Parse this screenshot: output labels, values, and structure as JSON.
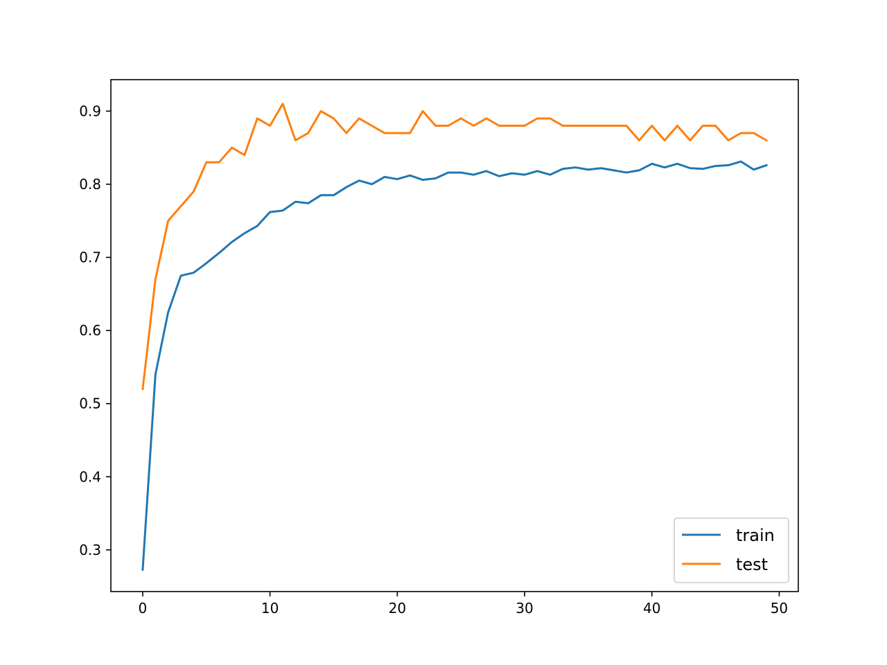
{
  "chart_data": {
    "type": "line",
    "title": "",
    "xlabel": "",
    "ylabel": "",
    "xlim": [
      -2.5,
      51.5
    ],
    "ylim": [
      0.243,
      0.943
    ],
    "x_ticks": [
      0,
      10,
      20,
      30,
      40,
      50
    ],
    "y_ticks": [
      0.3,
      0.4,
      0.5,
      0.6,
      0.7,
      0.8,
      0.9
    ],
    "grid": false,
    "legend_position": "lower-right",
    "series": [
      {
        "name": "train",
        "color": "#1f77b4",
        "x": [
          0,
          1,
          2,
          3,
          4,
          5,
          6,
          7,
          8,
          9,
          10,
          11,
          12,
          13,
          14,
          15,
          16,
          17,
          18,
          19,
          20,
          21,
          22,
          23,
          24,
          25,
          26,
          27,
          28,
          29,
          30,
          31,
          32,
          33,
          34,
          35,
          36,
          37,
          38,
          39,
          40,
          41,
          42,
          43,
          44,
          45,
          46,
          47,
          48,
          49
        ],
        "values": [
          0.273,
          0.54,
          0.625,
          0.675,
          0.679,
          0.692,
          0.706,
          0.721,
          0.733,
          0.743,
          0.762,
          0.764,
          0.776,
          0.774,
          0.785,
          0.785,
          0.796,
          0.805,
          0.8,
          0.81,
          0.807,
          0.812,
          0.806,
          0.808,
          0.816,
          0.816,
          0.813,
          0.818,
          0.811,
          0.815,
          0.813,
          0.818,
          0.813,
          0.821,
          0.823,
          0.82,
          0.822,
          0.819,
          0.816,
          0.819,
          0.828,
          0.823,
          0.828,
          0.822,
          0.821,
          0.825,
          0.826,
          0.831,
          0.82,
          0.826
        ]
      },
      {
        "name": "test",
        "color": "#ff7f0e",
        "x": [
          0,
          1,
          2,
          3,
          4,
          5,
          6,
          7,
          8,
          9,
          10,
          11,
          12,
          13,
          14,
          15,
          16,
          17,
          18,
          19,
          20,
          21,
          22,
          23,
          24,
          25,
          26,
          27,
          28,
          29,
          30,
          31,
          32,
          33,
          34,
          35,
          36,
          37,
          38,
          39,
          40,
          41,
          42,
          43,
          44,
          45,
          46,
          47,
          48,
          49
        ],
        "values": [
          0.52,
          0.67,
          0.75,
          0.77,
          0.79,
          0.83,
          0.83,
          0.85,
          0.84,
          0.89,
          0.88,
          0.91,
          0.86,
          0.87,
          0.9,
          0.89,
          0.87,
          0.89,
          0.88,
          0.87,
          0.87,
          0.87,
          0.9,
          0.88,
          0.88,
          0.89,
          0.88,
          0.89,
          0.88,
          0.88,
          0.88,
          0.89,
          0.89,
          0.88,
          0.88,
          0.88,
          0.88,
          0.88,
          0.88,
          0.86,
          0.88,
          0.86,
          0.88,
          0.86,
          0.88,
          0.88,
          0.86,
          0.87,
          0.87,
          0.86
        ]
      }
    ]
  }
}
